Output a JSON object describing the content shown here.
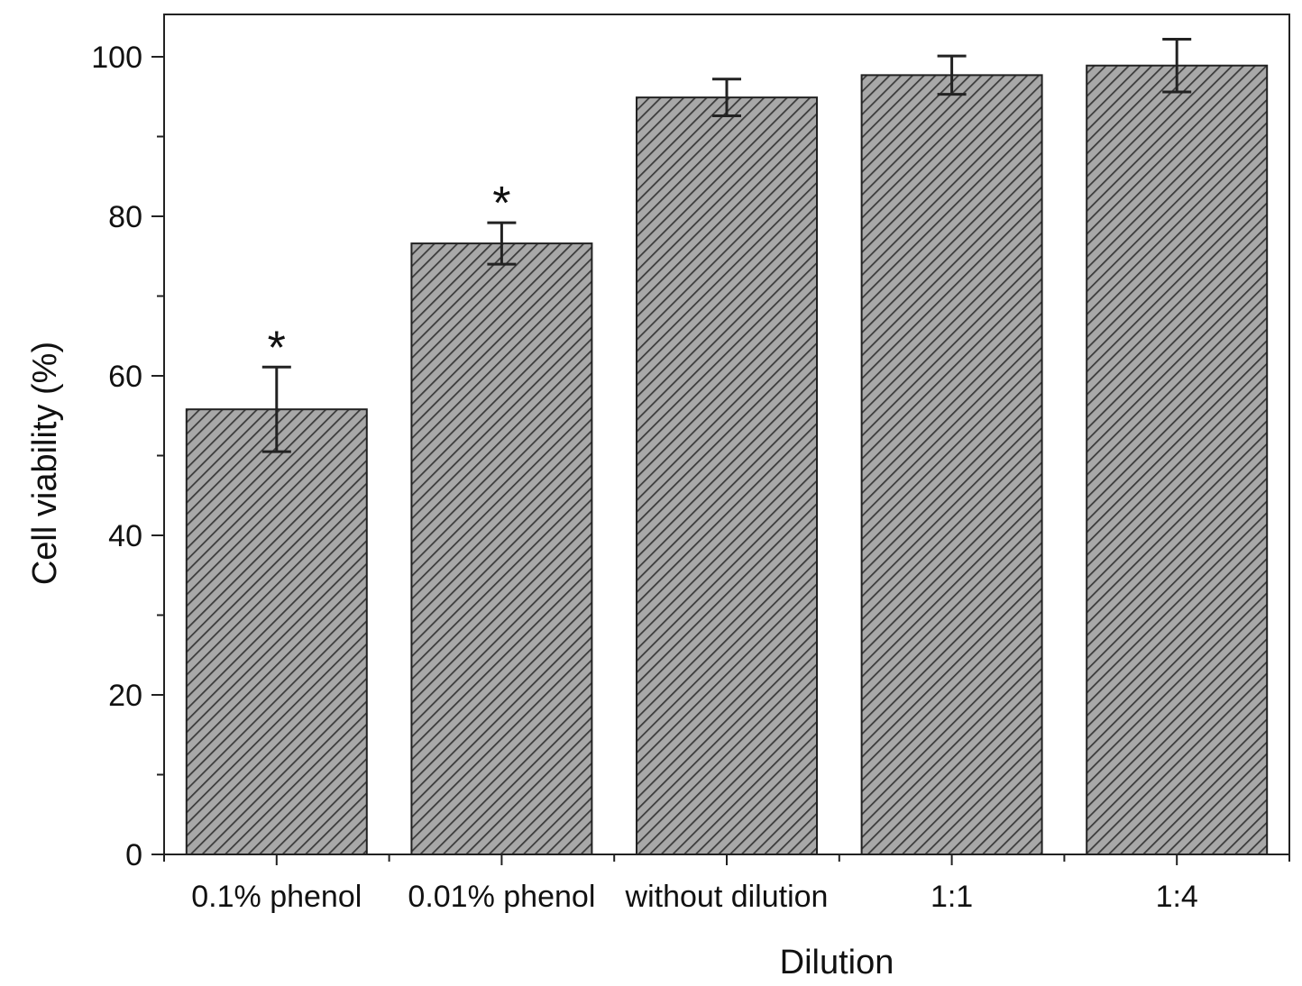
{
  "chart_data": {
    "type": "bar",
    "title": "",
    "xlabel": "Dilution",
    "ylabel": "Cell viability (%)",
    "categories": [
      "0.1% phenol",
      "0.01% phenol",
      "without dilution",
      "1:1",
      "1:4"
    ],
    "values": [
      55.8,
      76.6,
      94.9,
      97.7,
      98.9
    ],
    "errors": [
      5.3,
      2.6,
      2.3,
      2.4,
      3.3
    ],
    "annotations": [
      "*",
      "*",
      "",
      "",
      ""
    ],
    "ylim": [
      0,
      100
    ],
    "y_ticks": [
      0,
      20,
      40,
      60,
      80,
      100
    ],
    "grid": false,
    "legend": "none",
    "bar_fill": "#a8a8a8",
    "hatch_color": "#3a3a3a",
    "edge_color": "#222222"
  }
}
